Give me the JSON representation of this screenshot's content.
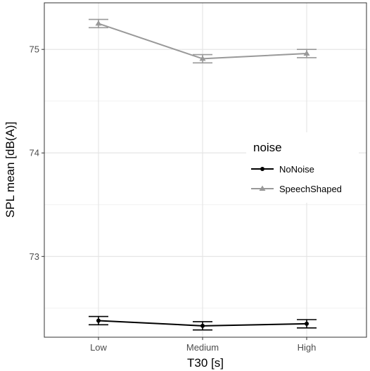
{
  "chart_data": {
    "type": "line",
    "xlabel": "T30 [s]",
    "ylabel": "SPL mean [dB(A)]",
    "categories": [
      "Low",
      "Medium",
      "High"
    ],
    "ylim": [
      72.22,
      75.45
    ],
    "y_ticks": [
      73,
      74,
      75
    ],
    "y_tick_labels": [
      "73",
      "74",
      "75"
    ],
    "grid": true,
    "legend": {
      "title": "noise",
      "placement": "right"
    },
    "series": [
      {
        "name": "NoNoise",
        "color": "#000000",
        "marker": "circle",
        "values": [
          72.38,
          72.33,
          72.35
        ],
        "error_low": [
          72.34,
          72.29,
          72.31
        ],
        "error_high": [
          72.42,
          72.37,
          72.39
        ]
      },
      {
        "name": "SpeechShaped",
        "color": "#999999",
        "marker": "triangle",
        "values": [
          75.25,
          74.91,
          74.96
        ],
        "error_low": [
          75.21,
          74.87,
          74.92
        ],
        "error_high": [
          75.29,
          74.95,
          75.0
        ]
      }
    ]
  }
}
